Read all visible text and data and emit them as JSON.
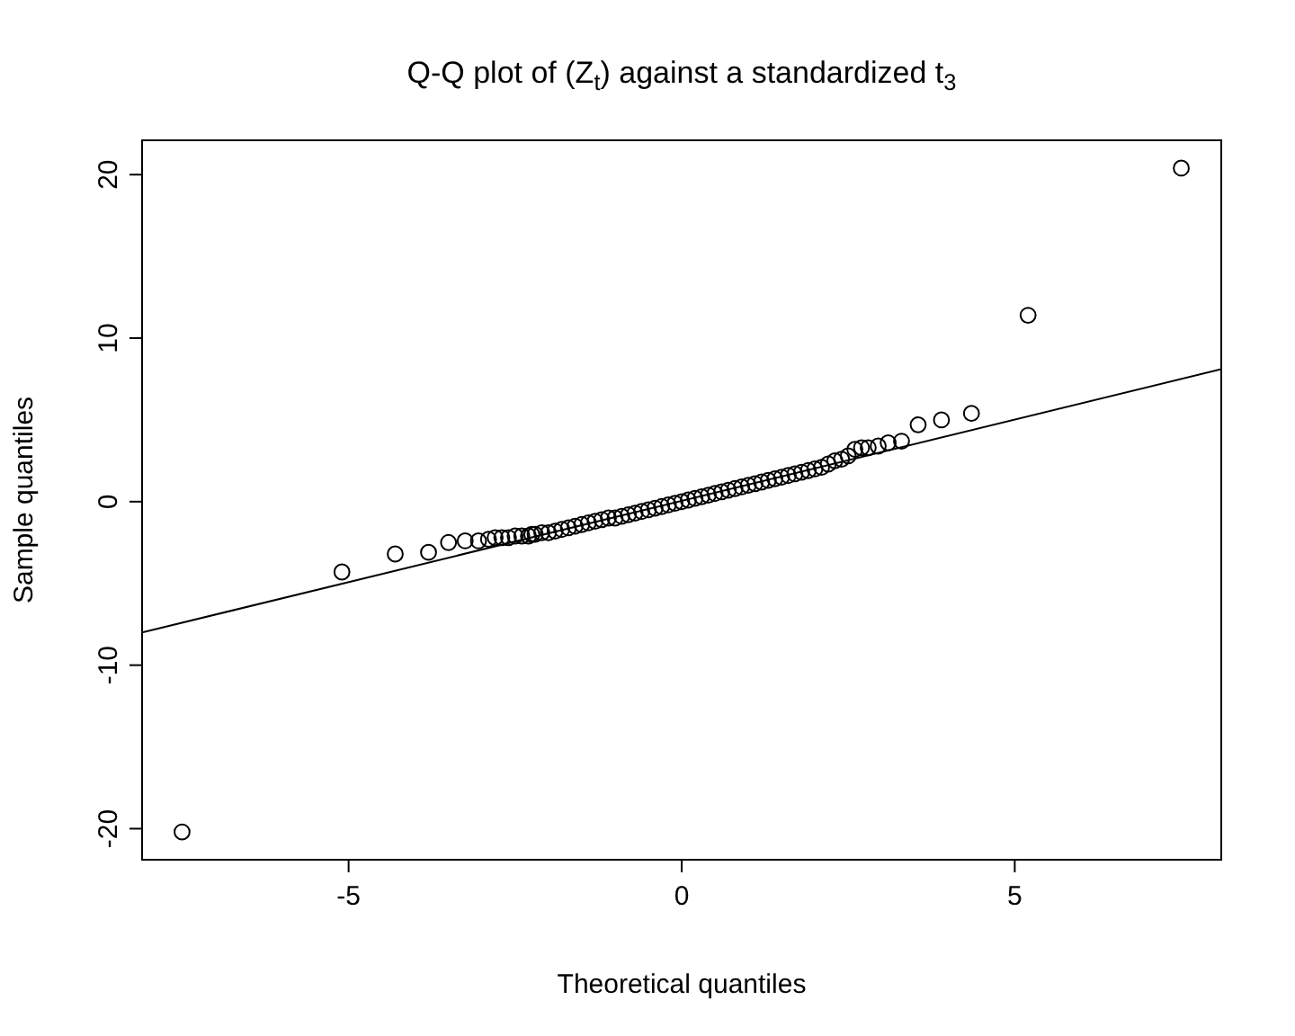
{
  "chart_data": {
    "type": "scatter",
    "title": "Q-Q plot of (Z$_{t}$) against a standardized t$_{3}$",
    "xlabel": "Theoretical quantiles",
    "ylabel": "Sample quantiles",
    "xlim": [
      -8.1,
      8.1
    ],
    "ylim": [
      -21.9,
      22.1
    ],
    "xticks": [
      -5,
      0,
      5
    ],
    "yticks": [
      -20,
      -10,
      0,
      10,
      20
    ],
    "grid": false,
    "series": [
      {
        "color": "#000000",
        "marker": "circle",
        "x": [
          -7.5,
          -5.1,
          -4.3,
          -3.8,
          -3.5,
          -3.25,
          -3.05,
          -2.9,
          -2.8,
          -2.7,
          -2.6,
          -2.5,
          -2.4,
          -2.3,
          -2.25,
          -2.2,
          -2.1,
          -2.0,
          -1.9,
          -1.8,
          -1.7,
          -1.6,
          -1.5,
          -1.4,
          -1.3,
          -1.2,
          -1.1,
          -1.0,
          -0.9,
          -0.8,
          -0.7,
          -0.6,
          -0.5,
          -0.4,
          -0.3,
          -0.2,
          -0.1,
          0,
          0.1,
          0.2,
          0.3,
          0.4,
          0.5,
          0.6,
          0.7,
          0.8,
          0.9,
          1.0,
          1.1,
          1.2,
          1.3,
          1.4,
          1.5,
          1.6,
          1.7,
          1.8,
          1.9,
          2.0,
          2.1,
          2.2,
          2.3,
          2.4,
          2.5,
          2.6,
          2.7,
          2.8,
          2.95,
          3.1,
          3.3,
          3.55,
          3.9,
          4.35,
          5.2,
          7.5
        ],
        "values": [
          -20.2,
          -4.3,
          -3.2,
          -3.1,
          -2.5,
          -2.4,
          -2.4,
          -2.3,
          -2.2,
          -2.2,
          -2.2,
          -2.1,
          -2.1,
          -2.1,
          -2.0,
          -2.0,
          -1.9,
          -1.9,
          -1.8,
          -1.7,
          -1.6,
          -1.5,
          -1.4,
          -1.3,
          -1.2,
          -1.1,
          -1.0,
          -1.0,
          -0.9,
          -0.8,
          -0.7,
          -0.6,
          -0.5,
          -0.4,
          -0.3,
          -0.2,
          -0.1,
          0,
          0.1,
          0.2,
          0.3,
          0.4,
          0.5,
          0.6,
          0.7,
          0.8,
          0.9,
          1.0,
          1.1,
          1.2,
          1.3,
          1.4,
          1.5,
          1.6,
          1.7,
          1.8,
          1.9,
          2.0,
          2.1,
          2.3,
          2.5,
          2.6,
          2.8,
          3.2,
          3.3,
          3.3,
          3.4,
          3.6,
          3.7,
          4.7,
          5.0,
          5.4,
          11.4,
          20.4
        ]
      },
      {
        "type": "line",
        "color": "#000000",
        "marker": "none",
        "line_style": "solid",
        "x": [
          -8.1,
          8.1
        ],
        "values": [
          -8.0,
          8.1
        ]
      }
    ]
  }
}
